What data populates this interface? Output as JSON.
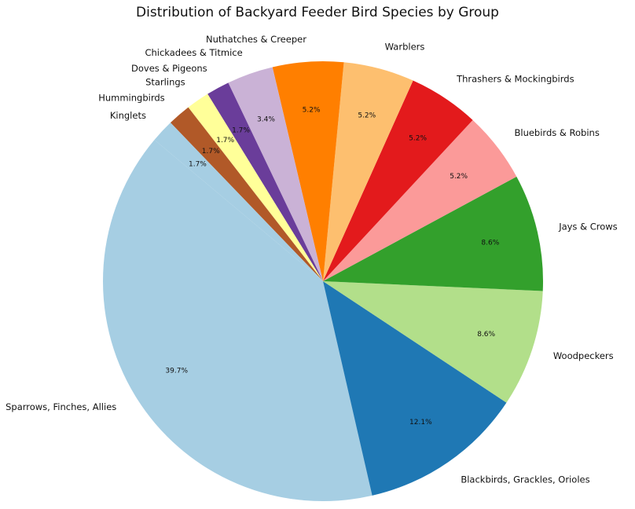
{
  "chart_data": {
    "type": "pie",
    "title": "Distribution of Backyard Feeder Bird Species by Group",
    "slices": [
      {
        "label": "Sparrows, Finches, Allies",
        "value": 39.7,
        "pct_label": "39.7%",
        "color": "#a6cee3"
      },
      {
        "label": "Blackbirds, Grackles, Orioles",
        "value": 12.1,
        "pct_label": "12.1%",
        "color": "#1f78b4"
      },
      {
        "label": "Woodpeckers",
        "value": 8.6,
        "pct_label": "8.6%",
        "color": "#b2df8a"
      },
      {
        "label": "Jays & Crows",
        "value": 8.6,
        "pct_label": "8.6%",
        "color": "#33a02c"
      },
      {
        "label": "Bluebirds & Robins",
        "value": 5.2,
        "pct_label": "5.2%",
        "color": "#fb9a99"
      },
      {
        "label": "Thrashers & Mockingbirds",
        "value": 5.2,
        "pct_label": "5.2%",
        "color": "#e31a1c"
      },
      {
        "label": "Warblers",
        "value": 5.2,
        "pct_label": "5.2%",
        "color": "#fdbf6f"
      },
      {
        "label": "Nuthatches & Creeper",
        "value": 5.2,
        "pct_label": "5.2%",
        "color": "#ff7f00"
      },
      {
        "label": "Chickadees & Titmice",
        "value": 3.4,
        "pct_label": "3.4%",
        "color": "#cab2d6"
      },
      {
        "label": "Doves & Pigeons",
        "value": 1.7,
        "pct_label": "1.7%",
        "color": "#6a3d9a"
      },
      {
        "label": "Starlings",
        "value": 1.7,
        "pct_label": "1.7%",
        "color": "#ffff99"
      },
      {
        "label": "Hummingbirds",
        "value": 1.7,
        "pct_label": "1.7%",
        "color": "#b15928"
      },
      {
        "label": "Kinglets",
        "value": 1.7,
        "pct_label": "1.7%",
        "color": "#a6cee3"
      }
    ]
  }
}
